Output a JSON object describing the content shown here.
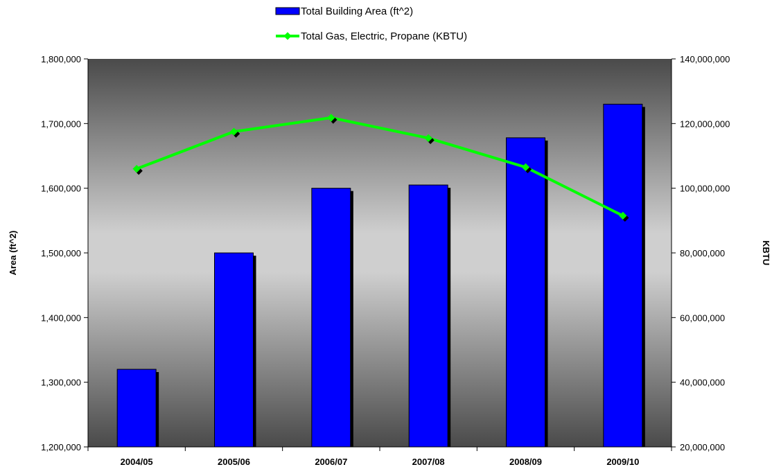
{
  "chart_data": {
    "type": "bar",
    "categories": [
      "2004/05",
      "2005/06",
      "2006/07",
      "2007/08",
      "2008/09",
      "2009/10"
    ],
    "series": [
      {
        "name": "Total Building Area (ft^2)",
        "type": "bar",
        "axis": "left",
        "color": "#0000ff",
        "values": [
          1320000,
          1500000,
          1600000,
          1605000,
          1678000,
          1730000
        ]
      },
      {
        "name": "Total Gas, Electric, Propane (KBTU)",
        "type": "line",
        "axis": "right",
        "color": "#00ff00",
        "values": [
          106000000,
          117500000,
          121800000,
          115500000,
          106500000,
          91500000
        ]
      }
    ],
    "ylabel": "Area (ft^2)",
    "y2label": "KBTU",
    "ylim": [
      1200000,
      1800000
    ],
    "y2lim": [
      20000000,
      140000000
    ],
    "yticks": [
      "1,200,000",
      "1,300,000",
      "1,400,000",
      "1,500,000",
      "1,600,000",
      "1,700,000",
      "1,800,000"
    ],
    "y2ticks": [
      "20,000,000",
      "40,000,000",
      "60,000,000",
      "80,000,000",
      "100,000,000",
      "120,000,000",
      "140,000,000"
    ],
    "legend": "top-center",
    "grid": false
  }
}
